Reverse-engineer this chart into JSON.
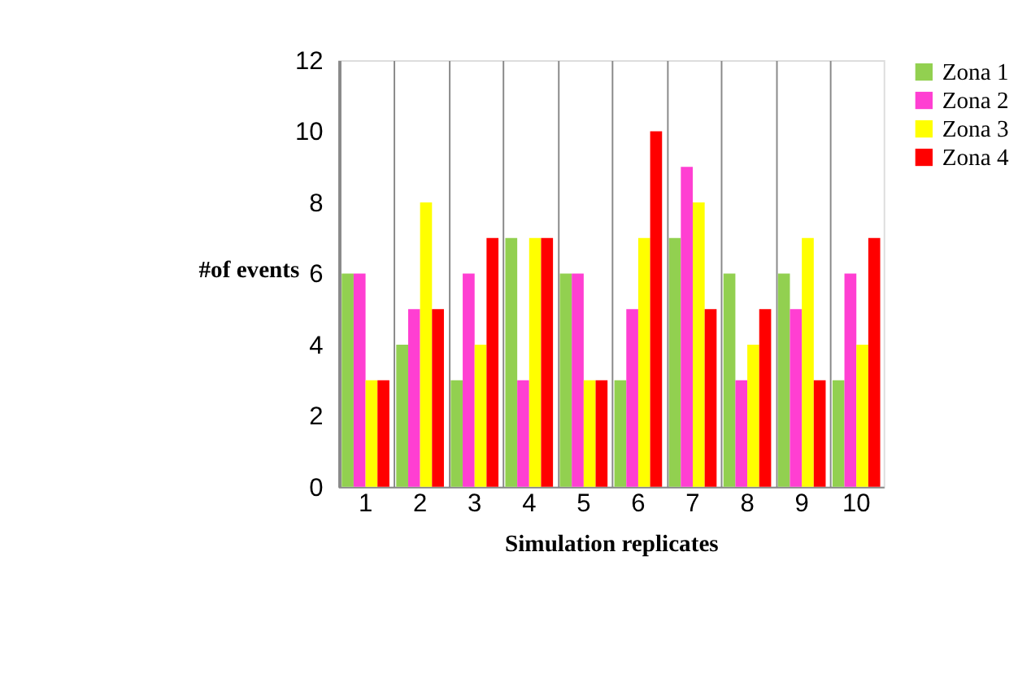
{
  "chart_data": {
    "type": "bar",
    "xlabel": "Simulation replicates",
    "ylabel": "#of events",
    "categories": [
      "1",
      "2",
      "3",
      "4",
      "5",
      "6",
      "7",
      "8",
      "9",
      "10"
    ],
    "series": [
      {
        "name": "Zona 1",
        "color": "#92d050",
        "values": [
          6,
          4,
          3,
          7,
          6,
          3,
          7,
          6,
          6,
          3
        ]
      },
      {
        "name": "Zona 2",
        "color": "#ff3fd2",
        "values": [
          6,
          5,
          6,
          3,
          6,
          5,
          9,
          3,
          5,
          6
        ]
      },
      {
        "name": "Zona 3",
        "color": "#ffff00",
        "values": [
          3,
          8,
          4,
          7,
          3,
          7,
          8,
          4,
          7,
          4
        ]
      },
      {
        "name": "Zona 4",
        "color": "#ff0000",
        "values": [
          3,
          5,
          7,
          7,
          3,
          10,
          5,
          5,
          3,
          7
        ]
      }
    ],
    "ylim": [
      0,
      12
    ],
    "yticks": [
      0,
      2,
      4,
      6,
      8,
      10,
      12
    ],
    "grid": "x",
    "legend": "right"
  }
}
